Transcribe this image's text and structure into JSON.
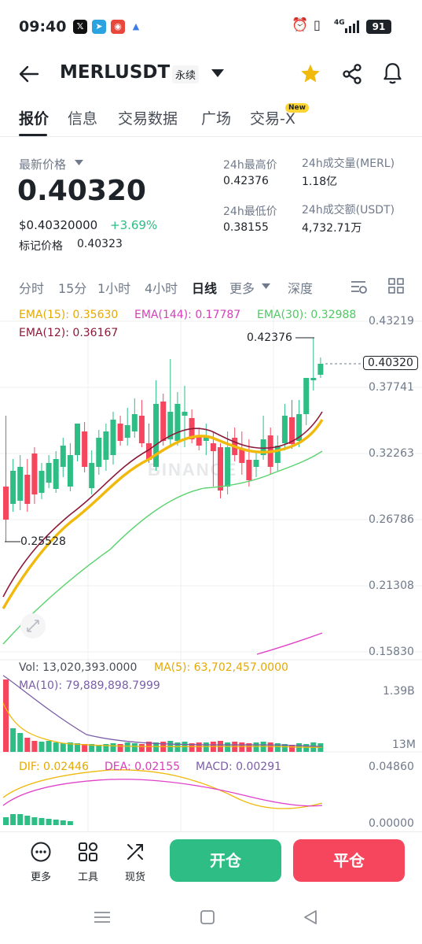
{
  "status_bar": {
    "time": "09:40",
    "battery": "91",
    "network": "4G"
  },
  "header": {
    "pair": "MERLUSDT",
    "contract_type": "永续"
  },
  "tabs": [
    {
      "label": "报价",
      "active": true
    },
    {
      "label": "信息",
      "active": false
    },
    {
      "label": "交易数据",
      "active": false
    },
    {
      "label": "广场",
      "active": false
    },
    {
      "label": "交易-X",
      "active": false
    }
  ],
  "new_badge": "New",
  "price": {
    "latest_label": "最新价格",
    "latest": "0.40320",
    "usd_value": "$0.40320000",
    "change": "+3.69%",
    "mark_label": "标记价格",
    "mark_value": "0.40323"
  },
  "stats": {
    "high_label": "24h最高价",
    "high_value": "0.42376",
    "low_label": "24h最低价",
    "low_value": "0.38155",
    "vol_label": "24h成交量(MERL)",
    "vol_value": "1.18亿",
    "amt_label": "24h成交额(USDT)",
    "amt_value": "4,732.71万"
  },
  "timeframes": [
    {
      "label": "分时",
      "active": false
    },
    {
      "label": "15分",
      "active": false
    },
    {
      "label": "1小时",
      "active": false
    },
    {
      "label": "4小时",
      "active": false
    },
    {
      "label": "日线",
      "active": true
    },
    {
      "label": "更多",
      "active": false
    },
    {
      "label": "深度",
      "active": false
    }
  ],
  "indicators": {
    "ema15": "EMA(15): 0.35630",
    "ema144": "EMA(144): 0.17787",
    "ema30": "EMA(30): 0.32988",
    "ema12": "EMA(12): 0.36167",
    "vol": "Vol: 13,020,393.0000",
    "ma5": "MA(5): 63,702,457.0000",
    "ma10": "MA(10): 79,889,898.7999",
    "dif": "DIF: 0.02446",
    "dea": "DEA: 0.02155",
    "macd": "MACD: 0.00291"
  },
  "price_axis": [
    "0.43219",
    "0.37741",
    "0.32263",
    "0.26786",
    "0.21308",
    "0.15830"
  ],
  "current_price_tag": "0.40320",
  "high_marker": "0.42376",
  "low_marker": "0.25528",
  "vol_axis": [
    "1.39B",
    "13M"
  ],
  "macd_axis": [
    "0.04860",
    "0.00000"
  ],
  "watermark": "BINANCE",
  "bottom_actions": [
    {
      "label": "更多",
      "icon": "more-icon"
    },
    {
      "label": "工具",
      "icon": "tools-icon"
    },
    {
      "label": "现货",
      "icon": "spot-icon"
    }
  ],
  "open_button": "开仓",
  "close_button": "平仓",
  "colors": {
    "up": "#2ebd85",
    "down": "#f6465d",
    "ema15": "#f0b90b",
    "ema144": "#e040c8",
    "ema30": "#5ad36e",
    "ema12": "#8b1a3a",
    "accent": "#fcd535"
  }
}
